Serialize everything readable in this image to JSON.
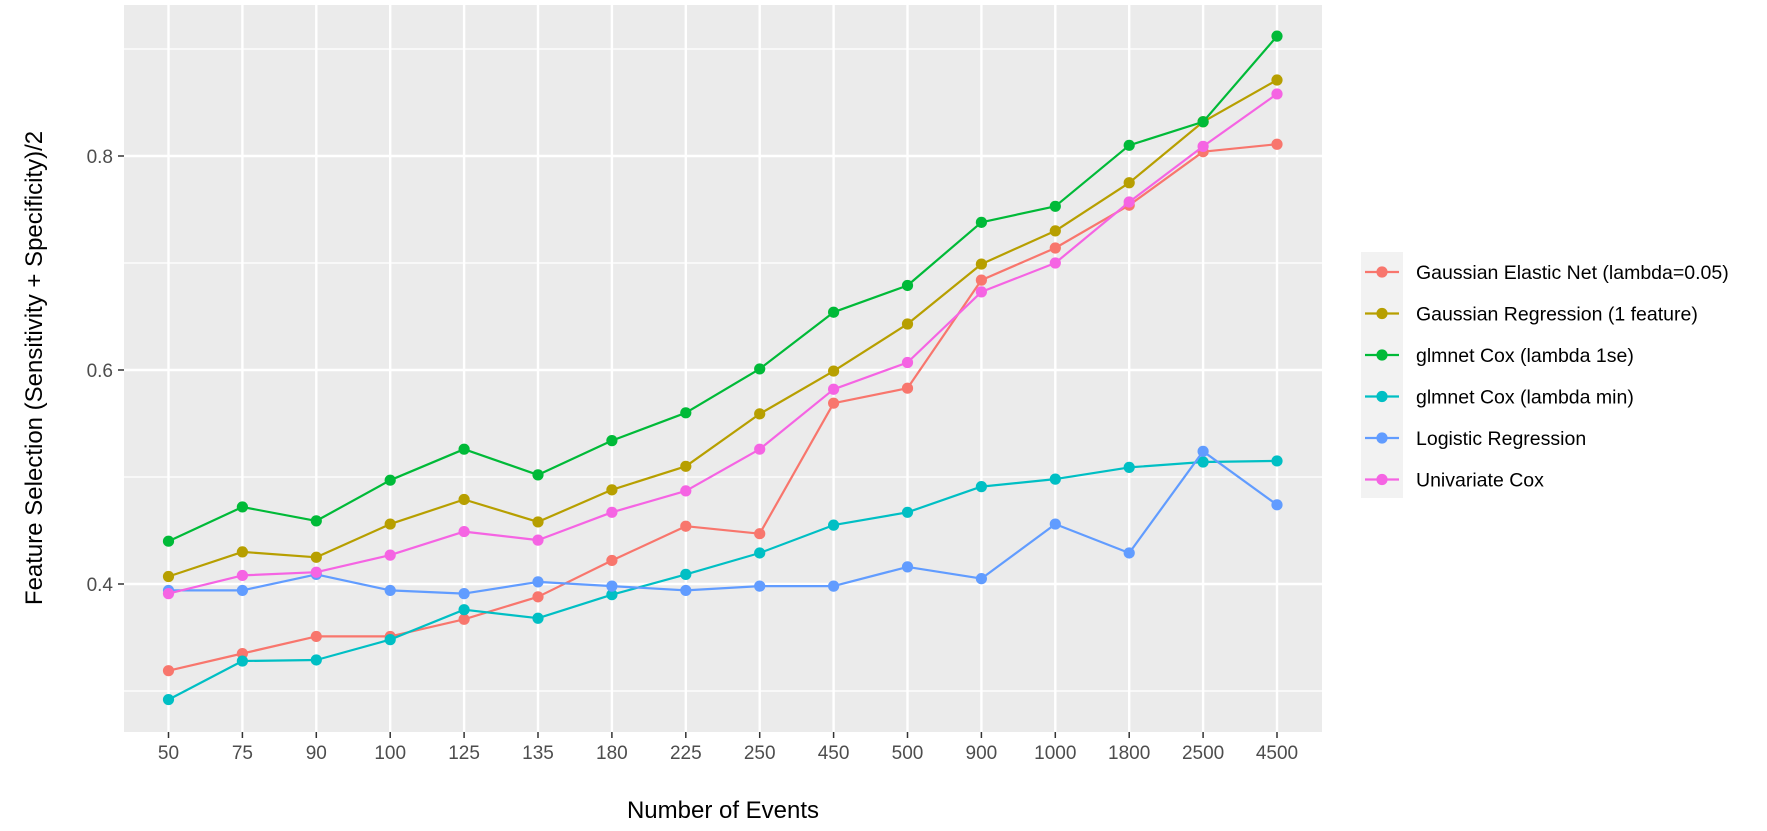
{
  "chart_data": {
    "type": "line",
    "title": "",
    "xlabel": "Number of Events",
    "ylabel": "Feature Selection (Sensitivity + Specificity)/2",
    "categories": [
      "50",
      "75",
      "90",
      "100",
      "125",
      "135",
      "180",
      "225",
      "250",
      "450",
      "500",
      "900",
      "1000",
      "1800",
      "2500",
      "4500"
    ],
    "ylim": [
      0.265,
      0.945
    ],
    "yticks": [
      0.4,
      0.6,
      0.8
    ],
    "ytick_labels": [
      "0.4",
      "0.6",
      "0.8"
    ],
    "grid": true,
    "legend_position": "right",
    "panel_background": "#ebebeb",
    "series": [
      {
        "name": "Gaussian Elastic Net (lambda=0.05)",
        "color": "#F8766D",
        "values": [
          0.319,
          0.335,
          0.351,
          0.351,
          0.367,
          0.388,
          0.422,
          0.454,
          0.447,
          0.569,
          0.583,
          0.684,
          0.714,
          0.754,
          0.804,
          0.811
        ]
      },
      {
        "name": "Gaussian Regression (1 feature)",
        "color": "#B79F00",
        "values": [
          0.407,
          0.43,
          0.425,
          0.456,
          0.479,
          0.458,
          0.488,
          0.51,
          0.559,
          0.599,
          0.643,
          0.699,
          0.73,
          0.775,
          0.832,
          0.871
        ]
      },
      {
        "name": "glmnet Cox (lambda 1se)",
        "color": "#00BA38",
        "values": [
          0.44,
          0.472,
          0.459,
          0.497,
          0.526,
          0.502,
          0.534,
          0.56,
          0.601,
          0.654,
          0.679,
          0.738,
          0.753,
          0.81,
          0.832,
          0.912
        ]
      },
      {
        "name": "glmnet Cox (lambda min)",
        "color": "#00BFC4",
        "values": [
          0.292,
          0.328,
          0.329,
          0.348,
          0.376,
          0.368,
          0.39,
          0.409,
          0.429,
          0.455,
          0.467,
          0.491,
          0.498,
          0.509,
          0.514,
          0.515
        ]
      },
      {
        "name": "Logistic Regression",
        "color": "#619CFF",
        "values": [
          0.394,
          0.394,
          0.409,
          0.394,
          0.391,
          0.402,
          0.398,
          0.394,
          0.398,
          0.398,
          0.416,
          0.405,
          0.456,
          0.429,
          0.524,
          0.474
        ]
      },
      {
        "name": "Univariate Cox",
        "color": "#F564E3",
        "values": [
          0.391,
          0.408,
          0.411,
          0.427,
          0.449,
          0.441,
          0.467,
          0.487,
          0.526,
          0.582,
          0.607,
          0.673,
          0.7,
          0.757,
          0.809,
          0.858
        ]
      }
    ]
  }
}
